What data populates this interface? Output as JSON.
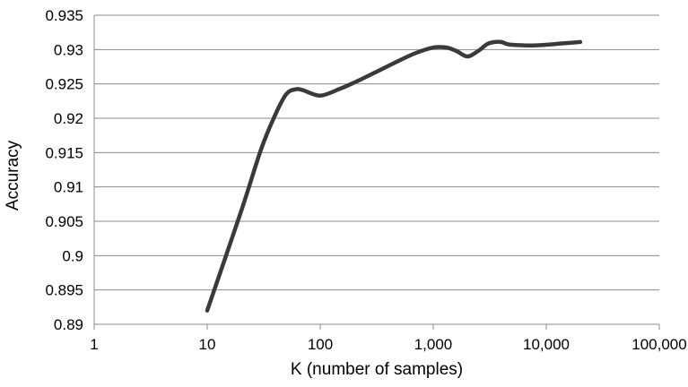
{
  "chart_data": {
    "type": "line",
    "title": "",
    "xlabel": "K (number of samples)",
    "ylabel": "Accuracy",
    "x_scale": "log",
    "xlim": [
      1,
      100000
    ],
    "ylim": [
      0.89,
      0.935
    ],
    "grid": "horizontal",
    "legend": "none",
    "x_ticks": [
      1,
      10,
      100,
      1000,
      10000,
      100000
    ],
    "x_tick_labels": [
      "1",
      "10",
      "100",
      "1,000",
      "10,000",
      "100,000"
    ],
    "y_ticks": [
      0.89,
      0.895,
      0.9,
      0.905,
      0.91,
      0.915,
      0.92,
      0.925,
      0.93,
      0.935
    ],
    "y_tick_labels": [
      "0.89",
      "0.895",
      "0.9",
      "0.905",
      "0.91",
      "0.915",
      "0.92",
      "0.925",
      "0.93",
      "0.935"
    ],
    "colors": {
      "line": "#3a3a3a",
      "grid": "#8c8c8c",
      "axis": "#8c8c8c"
    },
    "series": [
      {
        "x": [
          10,
          20,
          30,
          40,
          50,
          60,
          70,
          100,
          150,
          200,
          300,
          500,
          700,
          1000,
          1300,
          1600,
          2000,
          2500,
          3000,
          3500,
          4000,
          4500,
          5000,
          7000,
          10000,
          14000,
          20000
        ],
        "values": [
          0.892,
          0.9065,
          0.9155,
          0.9205,
          0.9235,
          0.9242,
          0.9241,
          0.9233,
          0.9243,
          0.9252,
          0.9266,
          0.9284,
          0.9295,
          0.9303,
          0.9303,
          0.9298,
          0.929,
          0.9298,
          0.9308,
          0.9311,
          0.9311,
          0.9308,
          0.9307,
          0.9306,
          0.9307,
          0.9309,
          0.9311
        ]
      }
    ]
  }
}
